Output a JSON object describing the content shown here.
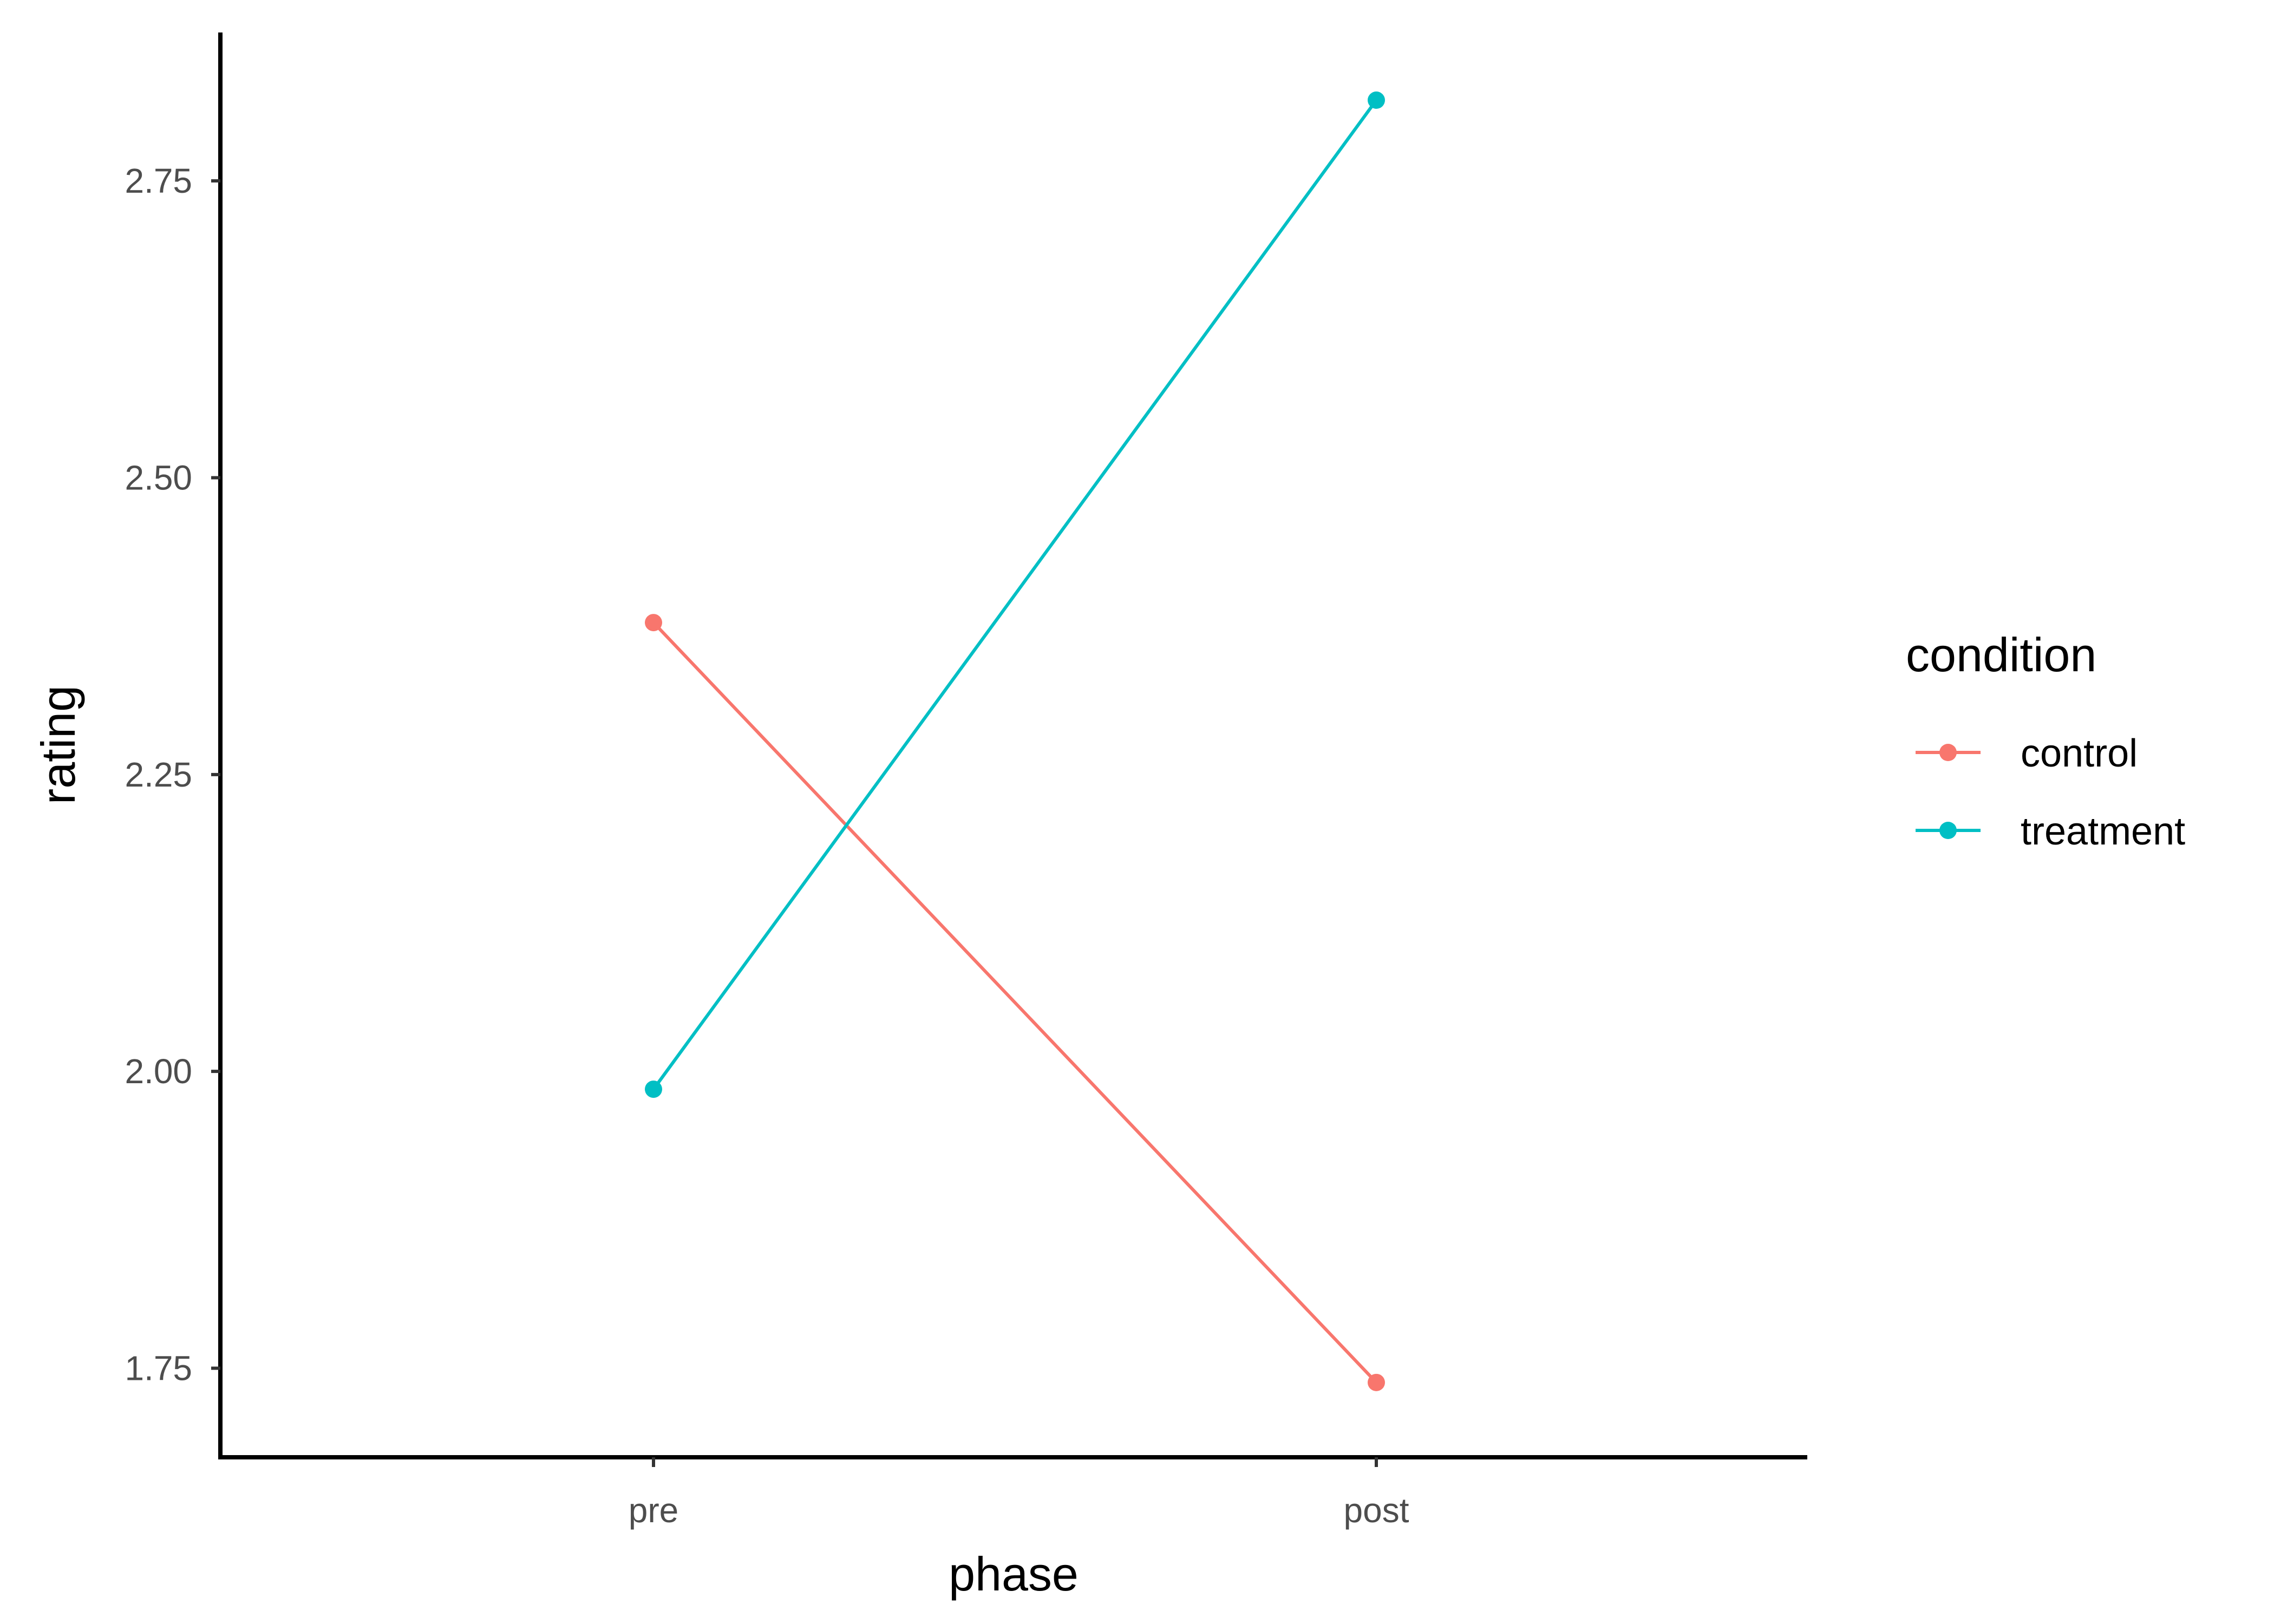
{
  "chart_data": {
    "type": "line",
    "categories": [
      "pre",
      "post"
    ],
    "series": [
      {
        "name": "control",
        "values": [
          2.378,
          1.738
        ],
        "color": "#F8766D"
      },
      {
        "name": "treatment",
        "values": [
          1.985,
          2.818
        ],
        "color": "#00BFC4"
      }
    ],
    "xlabel": "phase",
    "ylabel": "rating",
    "yticks": [
      "1.75",
      "2.00",
      "2.25",
      "2.50",
      "2.75"
    ],
    "ylim": [
      1.675,
      2.875
    ],
    "legend": {
      "title": "condition",
      "placement": "right"
    },
    "grid": false
  }
}
